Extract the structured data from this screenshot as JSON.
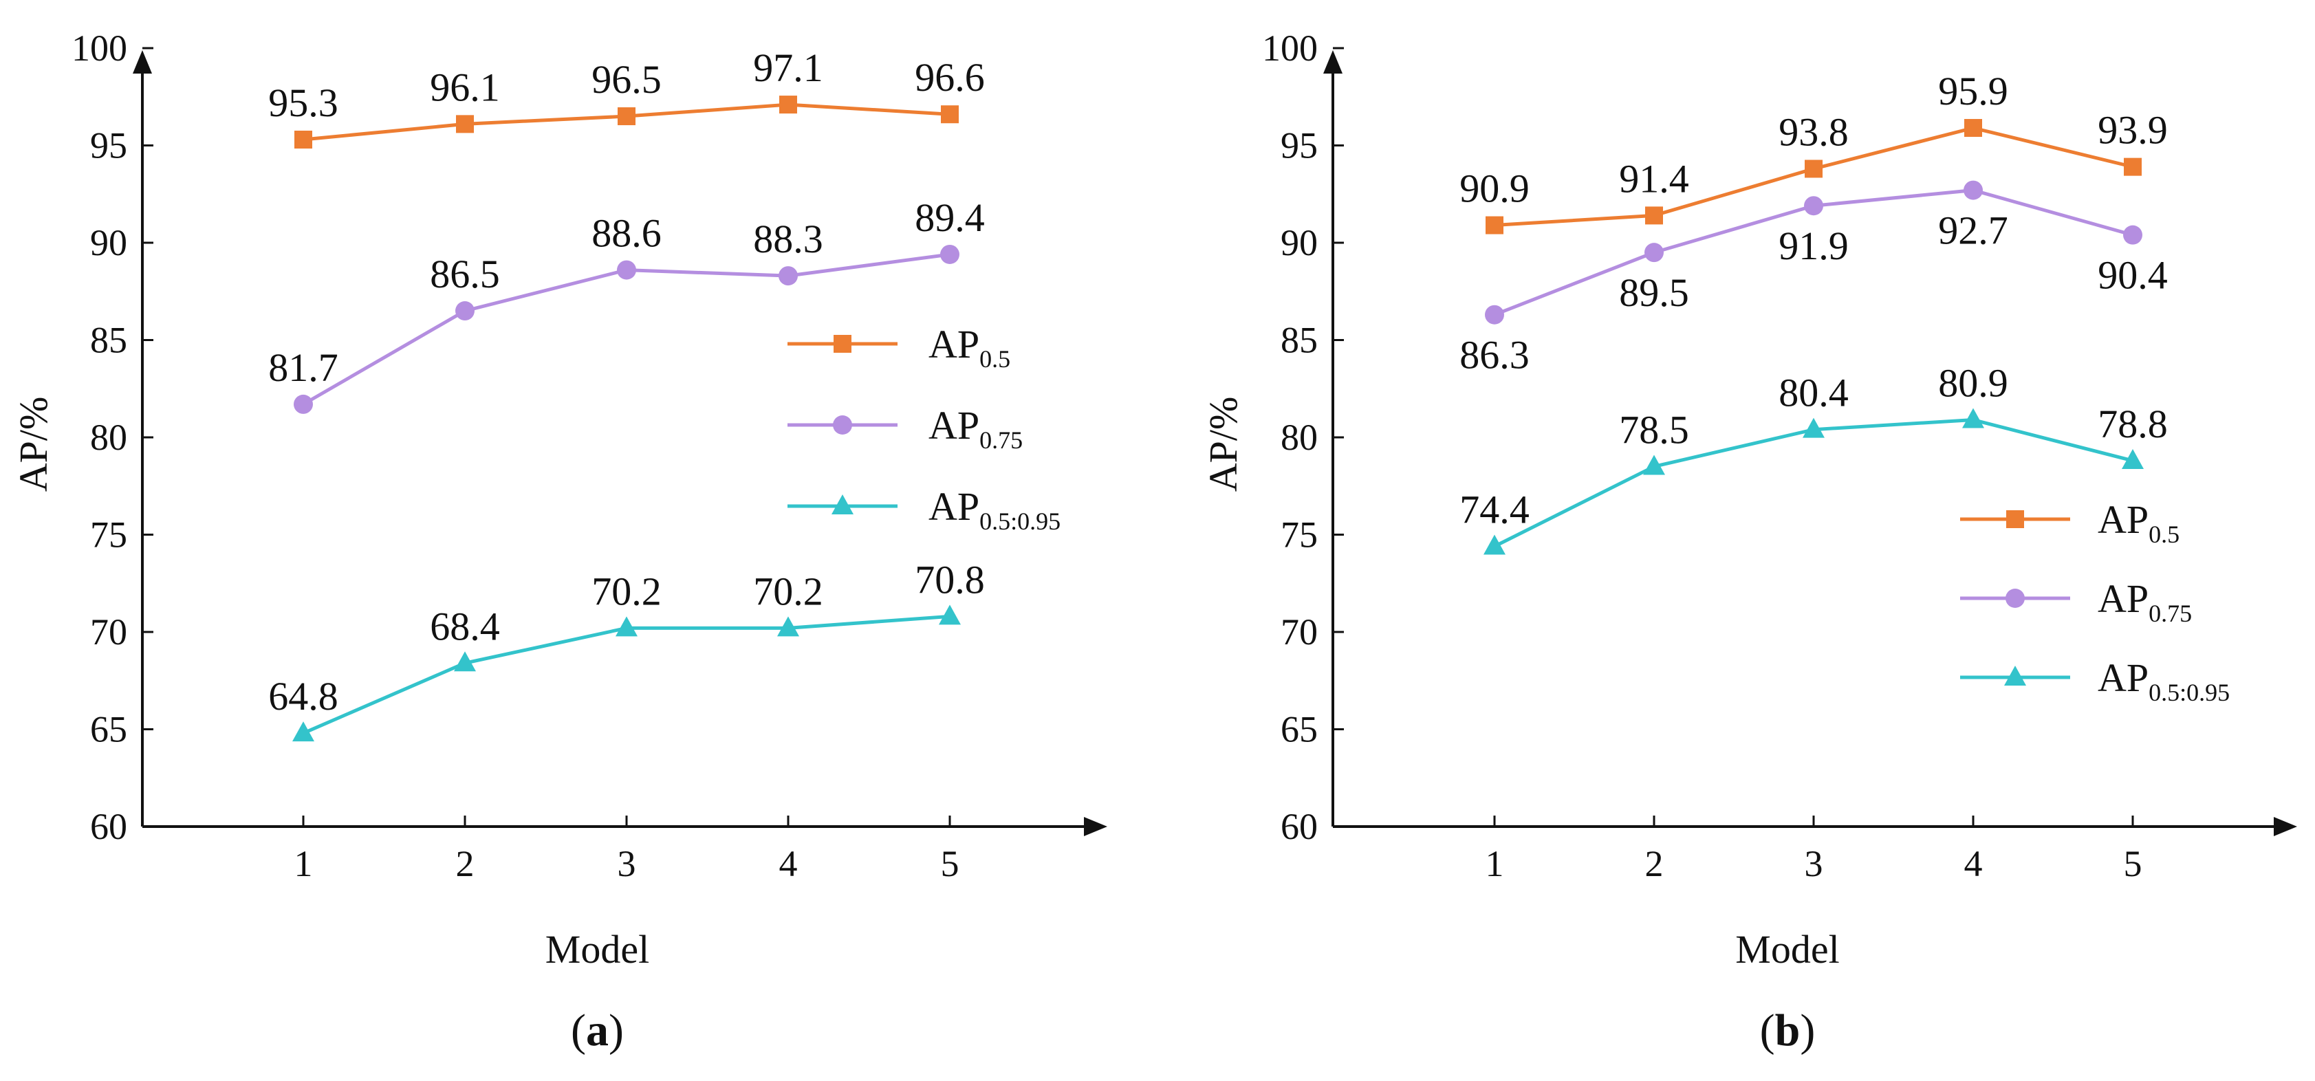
{
  "chart_data": [
    {
      "type": "line",
      "panel_label": "a",
      "categories": [
        "1",
        "2",
        "3",
        "4",
        "5"
      ],
      "xlabel": "Model",
      "ylabel": "AP/%",
      "ylim": [
        60,
        100
      ],
      "yticks": [
        "60",
        "65",
        "70",
        "75",
        "80",
        "85",
        "90",
        "95",
        "100"
      ],
      "legend_position": "right",
      "series": [
        {
          "name": "AP",
          "subscript": "0.5",
          "color": "#ed7d31",
          "marker": "square",
          "values": [
            95.3,
            96.1,
            96.5,
            97.1,
            96.6
          ],
          "labels": [
            "95.3",
            "96.1",
            "96.5",
            "97.1",
            "96.6"
          ],
          "label_side": "above"
        },
        {
          "name": "AP",
          "subscript": "0.75",
          "color": "#b48ee0",
          "marker": "circle",
          "values": [
            81.7,
            86.5,
            88.6,
            88.3,
            89.4
          ],
          "labels": [
            "81.7",
            "86.5",
            "88.6",
            "88.3",
            "89.4"
          ],
          "label_side": "above"
        },
        {
          "name": "AP",
          "subscript": "0.5:0.95",
          "color": "#33c3cb",
          "marker": "triangle",
          "values": [
            64.8,
            68.4,
            70.2,
            70.2,
            70.8
          ],
          "labels": [
            "64.8",
            "68.4",
            "70.2",
            "70.2",
            "70.8"
          ],
          "label_side": "above"
        }
      ]
    },
    {
      "type": "line",
      "panel_label": "b",
      "categories": [
        "1",
        "2",
        "3",
        "4",
        "5"
      ],
      "xlabel": "Model",
      "ylabel": "AP/%",
      "ylim": [
        60,
        100
      ],
      "yticks": [
        "60",
        "65",
        "70",
        "75",
        "80",
        "85",
        "90",
        "95",
        "100"
      ],
      "legend_position": "right",
      "series": [
        {
          "name": "AP",
          "subscript": "0.5",
          "color": "#ed7d31",
          "marker": "square",
          "values": [
            90.9,
            91.4,
            93.8,
            95.9,
            93.9
          ],
          "labels": [
            "90.9",
            "91.4",
            "93.8",
            "95.9",
            "93.9"
          ],
          "label_side": "above"
        },
        {
          "name": "AP",
          "subscript": "0.75",
          "color": "#b48ee0",
          "marker": "circle",
          "values": [
            86.3,
            89.5,
            91.9,
            92.7,
            90.4
          ],
          "labels": [
            "86.3",
            "89.5",
            "91.9",
            "92.7",
            "90.4"
          ],
          "label_side": "below"
        },
        {
          "name": "AP",
          "subscript": "0.5:0.95",
          "color": "#33c3cb",
          "marker": "triangle",
          "values": [
            74.4,
            78.5,
            80.4,
            80.9,
            78.8
          ],
          "labels": [
            "74.4",
            "78.5",
            "80.4",
            "80.9",
            "78.8"
          ],
          "label_side": "above"
        }
      ]
    }
  ]
}
